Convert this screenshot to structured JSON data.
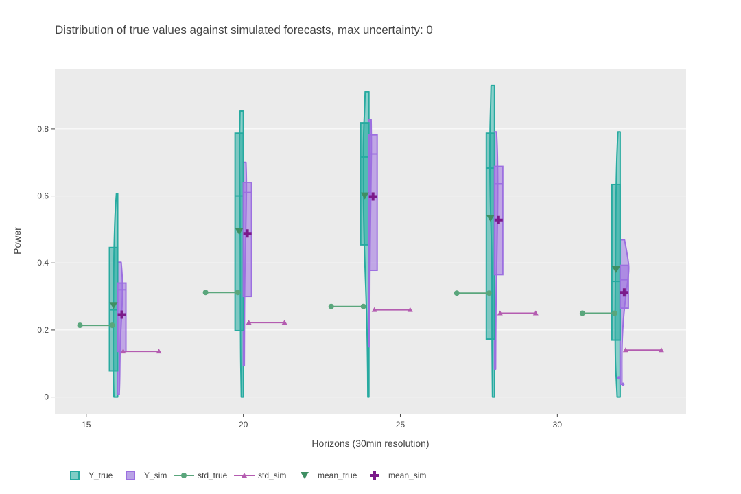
{
  "chart_data": {
    "type": "violin",
    "title": "Distribution of true values against simulated forecasts, max uncertainty: 0",
    "xlabel": "Horizons (30min resolution)",
    "ylabel": "Power",
    "xlim": [
      14,
      34.1
    ],
    "ylim": [
      -0.05,
      0.98
    ],
    "x_ticks": [
      15,
      20,
      25,
      30
    ],
    "y_ticks": [
      0,
      0.2,
      0.4,
      0.6,
      0.8
    ],
    "x_tick_labels": [
      "15",
      "20",
      "25",
      "30"
    ],
    "y_tick_labels": [
      "0",
      "0.2",
      "0.4",
      "0.6",
      "0.8"
    ],
    "grid": true,
    "legend_placement": "bottom",
    "colors": {
      "y_true_fill": "#7fcdc6",
      "y_true_line": "#27aaa0",
      "y_sim_fill": "#b9a3e6",
      "y_sim_line": "#9c6fe0",
      "std_true": "#5aa67c",
      "std_sim": "#b45cb0",
      "mean_true": "#3f8f63",
      "mean_sim": "#7b1a8a",
      "plot_bg": "#ebebeb"
    },
    "legend": [
      "Y_true",
      "Y_sim",
      "std_true",
      "std_sim",
      "mean_true",
      "mean_sim"
    ],
    "horizons": [
      {
        "x": 16,
        "true": {
          "min": 0,
          "max": 0.607,
          "box": {
            "q1": 0.078,
            "median": 0.26,
            "q3": 0.446
          },
          "mean": 0.273,
          "std": [
            0.214,
            0.214
          ],
          "profile": [
            [
              0,
              0.12
            ],
            [
              0.03,
              0.13
            ],
            [
              0.1,
              0.14
            ],
            [
              0.2,
              0.14
            ],
            [
              0.3,
              0.135
            ],
            [
              0.4,
              0.125
            ],
            [
              0.5,
              0.1
            ],
            [
              0.56,
              0.075
            ],
            [
              0.6,
              0.045
            ],
            [
              0.607,
              0.04
            ]
          ]
        },
        "sim": {
          "min": 0.008,
          "max": 0.402,
          "box": {
            "q1": 0.136,
            "median": 0.32,
            "q3": 0.34
          },
          "mean": 0.246,
          "std": [
            0.136,
            0.136
          ],
          "profile": [
            [
              0.008,
              0.05
            ],
            [
              0.05,
              0.065
            ],
            [
              0.1,
              0.07
            ],
            [
              0.15,
              0.08
            ],
            [
              0.2,
              0.1
            ],
            [
              0.25,
              0.13
            ],
            [
              0.3,
              0.152
            ],
            [
              0.35,
              0.15
            ],
            [
              0.38,
              0.13
            ],
            [
              0.402,
              0.11
            ]
          ]
        }
      },
      {
        "x": 20,
        "true": {
          "min": 0,
          "max": 0.853,
          "box": {
            "q1": 0.198,
            "median": 0.6,
            "q3": 0.787
          },
          "mean": 0.494,
          "std": [
            0.312,
            0.312
          ],
          "profile": [
            [
              0,
              0.065
            ],
            [
              0.05,
              0.072
            ],
            [
              0.1,
              0.083
            ],
            [
              0.2,
              0.09
            ],
            [
              0.3,
              0.095
            ],
            [
              0.4,
              0.095
            ],
            [
              0.5,
              0.1
            ],
            [
              0.6,
              0.11
            ],
            [
              0.7,
              0.123
            ],
            [
              0.75,
              0.124
            ],
            [
              0.8,
              0.115
            ],
            [
              0.853,
              0.105
            ]
          ]
        },
        "sim": {
          "min": 0.093,
          "max": 0.7,
          "box": {
            "q1": 0.3,
            "median": 0.61,
            "q3": 0.64
          },
          "mean": 0.488,
          "std": [
            0.222,
            0.222
          ],
          "profile": [
            [
              0.093,
              0.032
            ],
            [
              0.15,
              0.034
            ],
            [
              0.2,
              0.036
            ],
            [
              0.3,
              0.04
            ],
            [
              0.4,
              0.055
            ],
            [
              0.5,
              0.08
            ],
            [
              0.6,
              0.098
            ],
            [
              0.65,
              0.1
            ],
            [
              0.7,
              0.085
            ]
          ]
        }
      },
      {
        "x": 24,
        "true": {
          "min": 0,
          "max": 0.911,
          "box": {
            "q1": 0.454,
            "median": 0.716,
            "q3": 0.818
          },
          "mean": 0.6,
          "std": [
            0.27,
            0.27
          ],
          "profile": [
            [
              0,
              0.035
            ],
            [
              0.05,
              0.038
            ],
            [
              0.1,
              0.042
            ],
            [
              0.2,
              0.06
            ],
            [
              0.3,
              0.09
            ],
            [
              0.4,
              0.13
            ],
            [
              0.5,
              0.16
            ],
            [
              0.6,
              0.18
            ],
            [
              0.7,
              0.18
            ],
            [
              0.75,
              0.178
            ],
            [
              0.8,
              0.165
            ],
            [
              0.85,
              0.14
            ],
            [
              0.911,
              0.12
            ]
          ]
        },
        "sim": {
          "min": 0.15,
          "max": 0.828,
          "box": {
            "q1": 0.378,
            "median": 0.725,
            "q3": 0.782
          },
          "mean": 0.598,
          "std": [
            0.26,
            0.26
          ],
          "profile": [
            [
              0.15,
              0.025
            ],
            [
              0.2,
              0.025
            ],
            [
              0.3,
              0.028
            ],
            [
              0.4,
              0.032
            ],
            [
              0.5,
              0.045
            ],
            [
              0.6,
              0.06
            ],
            [
              0.7,
              0.075
            ],
            [
              0.75,
              0.08
            ],
            [
              0.8,
              0.075
            ],
            [
              0.828,
              0.07
            ]
          ]
        }
      },
      {
        "x": 28,
        "true": {
          "min": 0,
          "max": 0.929,
          "box": {
            "q1": 0.173,
            "median": 0.683,
            "q3": 0.787
          },
          "mean": 0.533,
          "std": [
            0.31,
            0.31
          ],
          "profile": [
            [
              0,
              0.065
            ],
            [
              0.05,
              0.07
            ],
            [
              0.1,
              0.075
            ],
            [
              0.2,
              0.082
            ],
            [
              0.3,
              0.08
            ],
            [
              0.4,
              0.083
            ],
            [
              0.5,
              0.11
            ],
            [
              0.6,
              0.14
            ],
            [
              0.7,
              0.152
            ],
            [
              0.8,
              0.145
            ],
            [
              0.85,
              0.13
            ],
            [
              0.929,
              0.11
            ]
          ]
        },
        "sim": {
          "min": 0.083,
          "max": 0.791,
          "box": {
            "q1": 0.365,
            "median": 0.637,
            "q3": 0.688
          },
          "mean": 0.528,
          "std": [
            0.25,
            0.25
          ],
          "profile": [
            [
              0.083,
              0.035
            ],
            [
              0.15,
              0.038
            ],
            [
              0.2,
              0.04
            ],
            [
              0.3,
              0.05
            ],
            [
              0.4,
              0.07
            ],
            [
              0.5,
              0.09
            ],
            [
              0.6,
              0.105
            ],
            [
              0.7,
              0.097
            ],
            [
              0.75,
              0.085
            ],
            [
              0.791,
              0.065
            ]
          ]
        }
      },
      {
        "x": 32,
        "true": {
          "min": 0,
          "max": 0.791,
          "box": {
            "q1": 0.17,
            "median": 0.345,
            "q3": 0.634
          },
          "mean": 0.38,
          "std": [
            0.25,
            0.25
          ],
          "profile": [
            [
              0,
              0.095
            ],
            [
              0.05,
              0.12
            ],
            [
              0.1,
              0.15
            ],
            [
              0.2,
              0.16
            ],
            [
              0.3,
              0.155
            ],
            [
              0.4,
              0.145
            ],
            [
              0.5,
              0.14
            ],
            [
              0.6,
              0.132
            ],
            [
              0.7,
              0.11
            ],
            [
              0.75,
              0.09
            ],
            [
              0.791,
              0.07
            ]
          ]
        },
        "sim": {
          "min": 0.038,
          "max": 0.469,
          "box": {
            "q1": 0.265,
            "median": 0.35,
            "q3": 0.393
          },
          "mean": 0.312,
          "std": [
            0.14,
            0.14
          ],
          "outliers": [
            0.057,
            0.038
          ],
          "profile": [
            [
              0.038,
              0.055
            ],
            [
              0.06,
              0.058
            ],
            [
              0.1,
              0.055
            ],
            [
              0.15,
              0.06
            ],
            [
              0.2,
              0.08
            ],
            [
              0.25,
              0.12
            ],
            [
              0.3,
              0.18
            ],
            [
              0.35,
              0.25
            ],
            [
              0.38,
              0.28
            ],
            [
              0.4,
              0.27
            ],
            [
              0.44,
              0.2
            ],
            [
              0.469,
              0.14
            ]
          ]
        }
      }
    ]
  }
}
